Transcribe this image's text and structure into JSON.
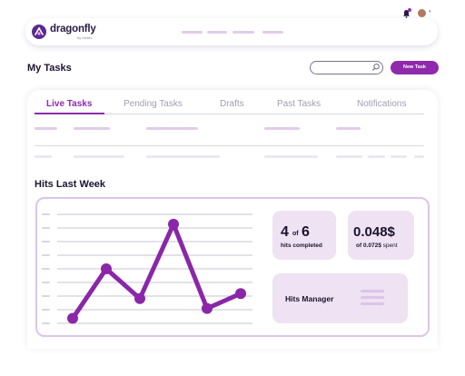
{
  "app": {
    "brand": "dragonfly",
    "brand_sub": "by certdo"
  },
  "header": {
    "title": "My Tasks",
    "search_placeholder": "",
    "new_task_label": "New Task"
  },
  "tabs": [
    {
      "label": "Live Tasks",
      "active": true
    },
    {
      "label": "Pending Tasks",
      "active": false
    },
    {
      "label": "Drafts",
      "active": false
    },
    {
      "label": "Past Tasks",
      "active": false
    },
    {
      "label": "Notifications",
      "active": false
    }
  ],
  "section": {
    "title": "Hits Last Week"
  },
  "stats": {
    "hits": {
      "value": "4",
      "of": "of",
      "total": "6",
      "caption": "hits completed"
    },
    "spend": {
      "value": "0.048$",
      "of": "of",
      "budget": "0.072$",
      "spent": "spent"
    },
    "manager": {
      "label": "Hits Manager"
    }
  },
  "chart_data": {
    "type": "line",
    "title": "",
    "xlabel": "",
    "ylabel": "",
    "x": [
      1,
      2,
      3,
      4,
      5,
      6
    ],
    "series": [
      {
        "values": [
          0.5,
          5.5,
          2.5,
          10,
          1.5,
          3
        ]
      }
    ],
    "ylim": [
      0,
      11
    ],
    "grid": true,
    "color": "#8a27a8"
  },
  "colors": {
    "accent": "#8e2aac",
    "card_tint": "#eee2f3",
    "placeholder": "#e2cce9"
  }
}
